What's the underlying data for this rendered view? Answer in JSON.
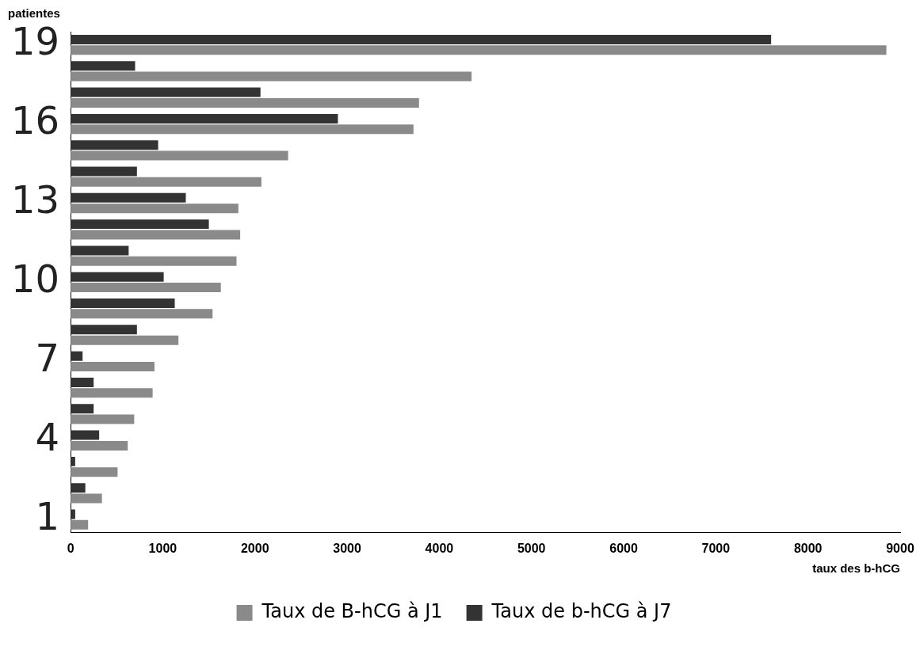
{
  "chart_data": {
    "type": "bar",
    "orientation": "horizontal",
    "xlabel": "taux des b-hCG",
    "ylabel": "patientes",
    "categories": [
      "19",
      null,
      null,
      "16",
      null,
      null,
      "13",
      null,
      null,
      "10",
      null,
      null,
      "7",
      null,
      null,
      "4",
      null,
      null,
      "1"
    ],
    "series": [
      {
        "name": "Taux de B-hCG à J1",
        "color": "#8a8a8a",
        "values": [
          8850,
          4350,
          3780,
          3720,
          2360,
          2070,
          1820,
          1840,
          1800,
          1630,
          1540,
          1170,
          910,
          890,
          690,
          620,
          510,
          340,
          190
        ]
      },
      {
        "name": "Taux de b-hCG à J7",
        "color": "#333333",
        "values": [
          7600,
          700,
          2060,
          2900,
          950,
          720,
          1250,
          1500,
          630,
          1010,
          1130,
          720,
          130,
          250,
          250,
          310,
          50,
          160,
          50
        ]
      }
    ],
    "xlim": [
      0,
      9000
    ],
    "xticks": [
      0,
      1000,
      2000,
      3000,
      4000,
      5000,
      6000,
      7000,
      8000,
      9000
    ],
    "grid": false,
    "legend": "bottom"
  }
}
